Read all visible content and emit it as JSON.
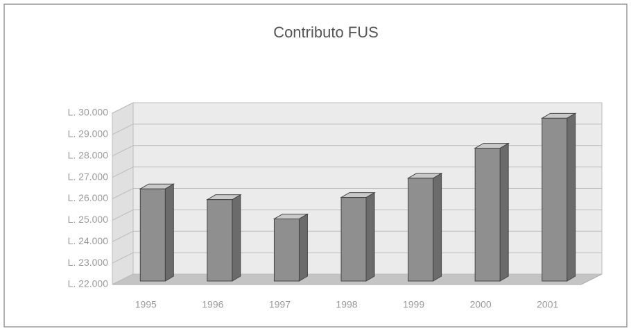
{
  "chart_data": {
    "type": "bar",
    "title": "Contributo FUS",
    "categories": [
      "1995",
      "1996",
      "1997",
      "1998",
      "1999",
      "2000",
      "2001"
    ],
    "values": [
      26300,
      25800,
      24900,
      25900,
      26800,
      28200,
      29600
    ],
    "color": "#8f8f8f",
    "ylim": [
      22000,
      30000
    ],
    "yticks": [
      {
        "value": 22000,
        "label": "L. 22.000"
      },
      {
        "value": 23000,
        "label": "L. 23.000"
      },
      {
        "value": 24000,
        "label": "L. 24.000"
      },
      {
        "value": 25000,
        "label": "L. 25.000"
      },
      {
        "value": 26000,
        "label": "L. 26.000"
      },
      {
        "value": 27000,
        "label": "L. 27.000"
      },
      {
        "value": 28000,
        "label": "L. 28.000"
      },
      {
        "value": 29000,
        "label": "L. 29.000"
      },
      {
        "value": 30000,
        "label": "L. 30.000"
      }
    ],
    "grid": true
  }
}
